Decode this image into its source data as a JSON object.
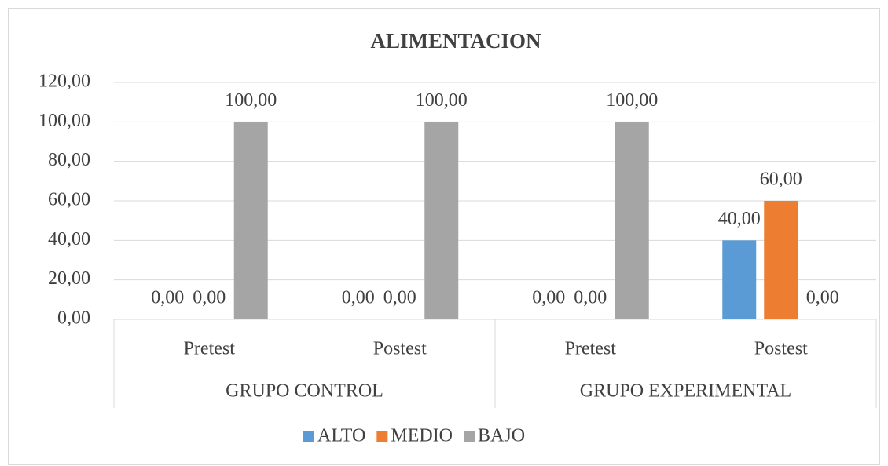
{
  "chart_data": {
    "type": "bar",
    "title": "ALIMENTACION",
    "categories": [
      "Pretest",
      "Postest",
      "Pretest",
      "Postest"
    ],
    "groups": [
      {
        "name": "GRUPO CONTROL",
        "span": [
          0,
          1
        ]
      },
      {
        "name": "GRUPO EXPERIMENTAL",
        "span": [
          2,
          3
        ]
      }
    ],
    "series": [
      {
        "name": "ALTO",
        "color": "#5b9bd5",
        "values": [
          0,
          0,
          0,
          40
        ],
        "value_labels": [
          "0,00",
          "0,00",
          "0,00",
          "40,00"
        ]
      },
      {
        "name": "MEDIO",
        "color": "#ed7d31",
        "values": [
          0,
          0,
          0,
          60
        ],
        "value_labels": [
          "0,00",
          "0,00",
          "0,00",
          "60,00"
        ]
      },
      {
        "name": "BAJO",
        "color": "#a5a5a5",
        "values": [
          100,
          100,
          100,
          0
        ],
        "value_labels": [
          "100,00",
          "100,00",
          "100,00",
          "0,00"
        ]
      }
    ],
    "ylim": [
      0,
      120
    ],
    "yticks": [
      {
        "value": 0,
        "label": "0,00"
      },
      {
        "value": 20,
        "label": "20,00"
      },
      {
        "value": 40,
        "label": "40,00"
      },
      {
        "value": 60,
        "label": "60,00"
      },
      {
        "value": 80,
        "label": "80,00"
      },
      {
        "value": 100,
        "label": "100,00"
      },
      {
        "value": 120,
        "label": "120,00"
      }
    ],
    "grid": true,
    "legend": "bottom"
  }
}
